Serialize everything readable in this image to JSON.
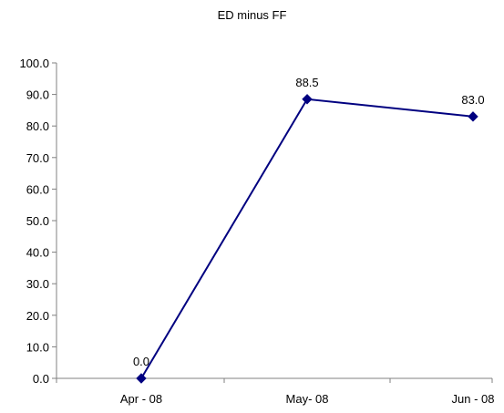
{
  "chart_data": {
    "type": "line",
    "title": "ED minus FF",
    "xlabel": "",
    "ylabel": "",
    "categories": [
      "Apr - 08",
      "May- 08",
      "Jun - 08"
    ],
    "series": [
      {
        "values": [
          0.0,
          88.5,
          83.0
        ],
        "data_labels": [
          "0.0",
          "88.5",
          "83.0"
        ],
        "color": "#000080",
        "marker": "diamond"
      }
    ],
    "ylim": [
      0,
      100
    ],
    "yticks": [
      0,
      10,
      20,
      30,
      40,
      50,
      60,
      70,
      80,
      90,
      100
    ],
    "ytick_labels": [
      "0.0",
      "10.0",
      "20.0",
      "30.0",
      "40.0",
      "50.0",
      "60.0",
      "70.0",
      "80.0",
      "90.0",
      "100.0"
    ],
    "grid": false,
    "legend": "none",
    "axis_color": "#808080"
  }
}
